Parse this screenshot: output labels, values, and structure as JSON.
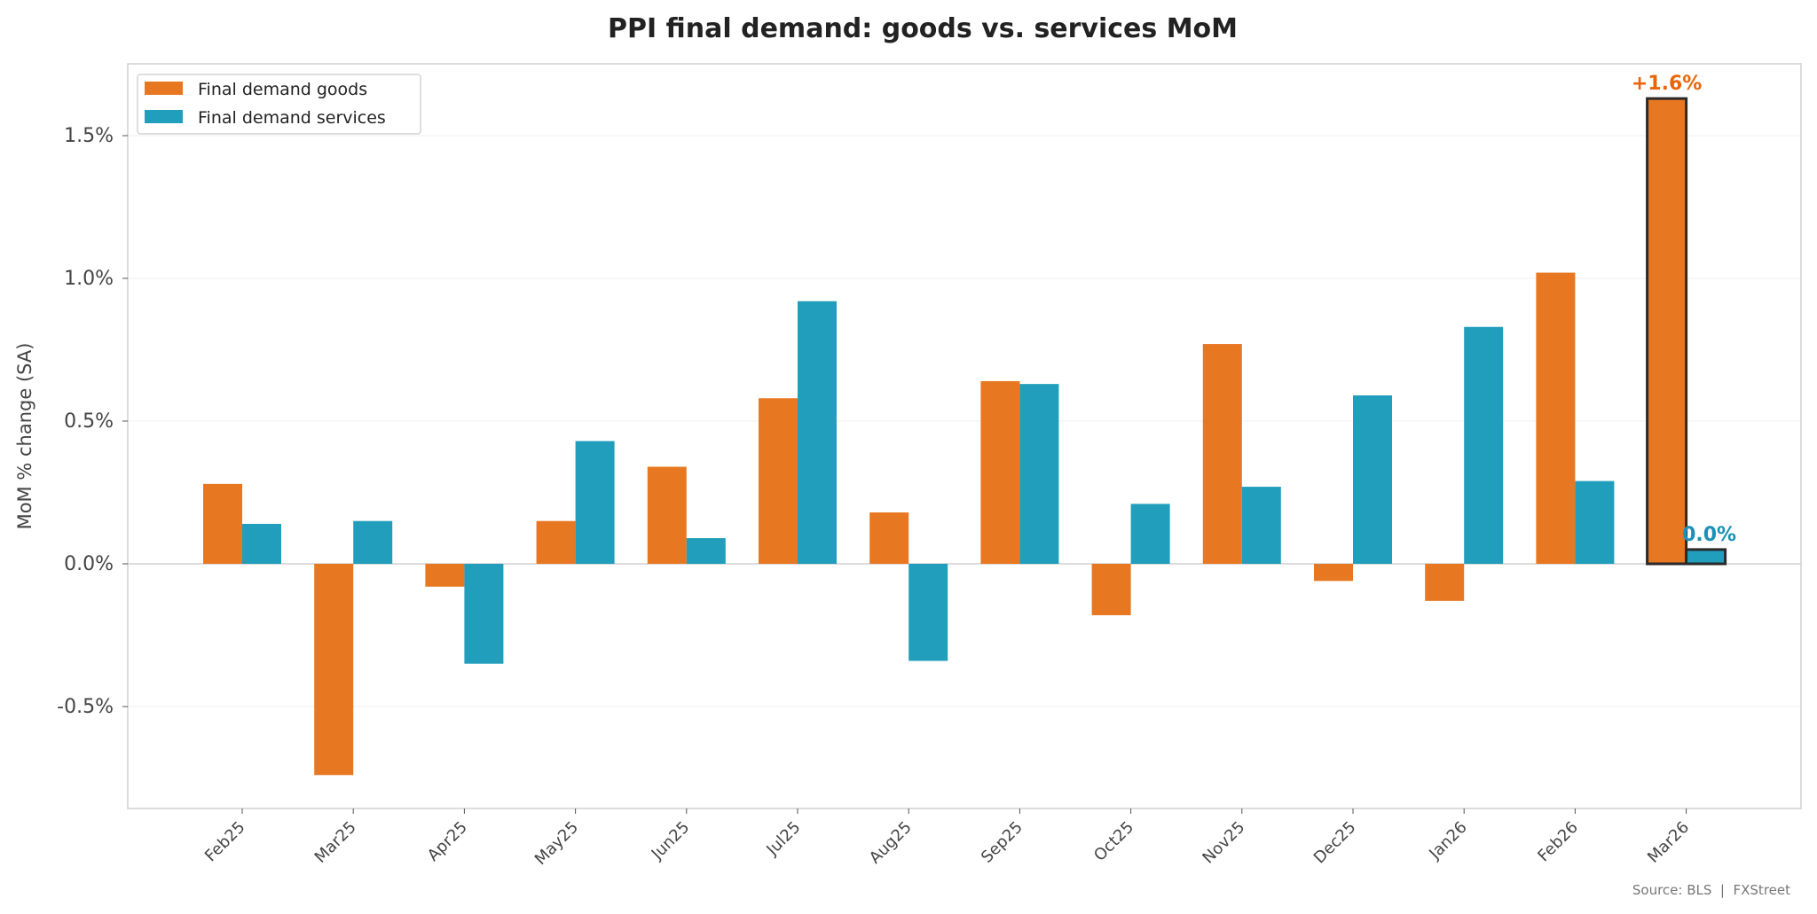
{
  "chart_data": {
    "type": "bar",
    "title": "PPI final demand: goods vs. services MoM",
    "xlabel": "",
    "ylabel": "MoM % change (SA)",
    "ylim": [
      -0.86,
      1.75
    ],
    "yticks": [
      -0.5,
      0.0,
      0.5,
      1.0,
      1.5
    ],
    "ytick_labels": [
      "-0.5%",
      "0.0%",
      "0.5%",
      "1.0%",
      "1.5%"
    ],
    "grid": true,
    "legend_position": "top-left",
    "categories": [
      "Feb25",
      "Mar25",
      "Apr25",
      "May25",
      "Jun25",
      "Jul25",
      "Aug25",
      "Sep25",
      "Oct25",
      "Nov25",
      "Dec25",
      "Jan26",
      "Feb26",
      "Mar26"
    ],
    "series": [
      {
        "name": "Final demand goods",
        "color": "#E87722",
        "values": [
          0.28,
          -0.74,
          -0.08,
          0.15,
          0.34,
          0.58,
          0.18,
          0.64,
          -0.18,
          0.77,
          -0.06,
          -0.13,
          1.02,
          1.63
        ]
      },
      {
        "name": "Final demand services",
        "color": "#219EBC",
        "values": [
          0.14,
          0.15,
          -0.35,
          0.43,
          0.09,
          0.92,
          -0.34,
          0.63,
          0.21,
          0.27,
          0.59,
          0.83,
          0.29,
          0.05
        ]
      }
    ],
    "annotations": [
      {
        "text": "+1.6%",
        "series": 0,
        "category": "Mar26",
        "color": "#E8650A"
      },
      {
        "text": "0.0%",
        "series": 1,
        "category": "Mar26",
        "color": "#1A91B5"
      }
    ],
    "source": "Source: BLS  |  FXStreet"
  }
}
